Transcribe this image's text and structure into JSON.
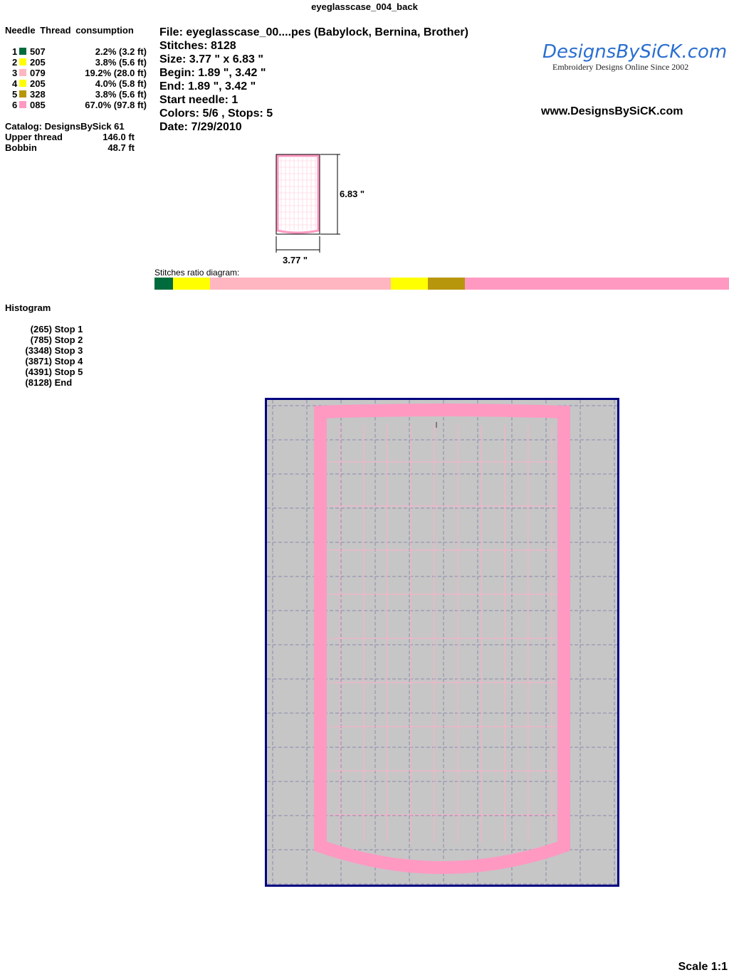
{
  "title": "eyeglasscase_004_back",
  "needle_header": "Needle  Thread consumption",
  "needles": [
    {
      "n": "1",
      "color": "#006b3c",
      "code": "507",
      "pct": "2.2% (3.2 ft)"
    },
    {
      "n": "2",
      "color": "#ffff00",
      "code": "205",
      "pct": "3.8% (5.6 ft)"
    },
    {
      "n": "3",
      "color": "#ffb6c1",
      "code": "079",
      "pct": "19.2% (28.0 ft)"
    },
    {
      "n": "4",
      "color": "#ffff00",
      "code": "205",
      "pct": "4.0% (5.8 ft)"
    },
    {
      "n": "5",
      "color": "#b8960c",
      "code": "328",
      "pct": "3.8% (5.6 ft)"
    },
    {
      "n": "6",
      "color": "#ff99c2",
      "code": "085",
      "pct": "67.0% (97.8 ft)"
    }
  ],
  "catalog": "Catalog: DesignsBySick 61",
  "upper_label": "Upper thread",
  "upper_value": "146.0 ft",
  "bobbin_label": "Bobbin",
  "bobbin_value": "48.7 ft",
  "info": [
    "File: eyeglasscase_00....pes  (Babylock, Bernina, Brother)",
    "Stitches: 8128",
    "Size: 3.77 \" x 6.83 \"",
    "Begin: 1.89 \", 3.42 \"",
    "End: 1.89 \", 3.42 \"",
    "Start needle: 1",
    "Colors: 5/6 , Stops: 5",
    "Date: 7/29/2010"
  ],
  "logo": {
    "name": "DesignsBySiCK.com",
    "tagline": "Embroidery Designs Online Since 2002"
  },
  "url": "www.DesignsBySiCK.com",
  "dim_height": "6.83 \"",
  "dim_width": "3.77 \"",
  "ratio_label": "Stitches ratio diagram:",
  "histogram_title": "Histogram",
  "histogram": [
    {
      "count": "(265)",
      "stitches": 265,
      "label": "Stop 1"
    },
    {
      "count": "(785)",
      "stitches": 785,
      "label": "Stop 2"
    },
    {
      "count": "(3348)",
      "stitches": 3348,
      "label": "Stop 3"
    },
    {
      "count": "(3871)",
      "stitches": 3871,
      "label": "Stop 4"
    },
    {
      "count": "(4391)",
      "stitches": 4391,
      "label": "Stop 5"
    },
    {
      "count": "(8128)",
      "stitches": 8128,
      "label": "End"
    }
  ],
  "scale": "Scale 1:1"
}
